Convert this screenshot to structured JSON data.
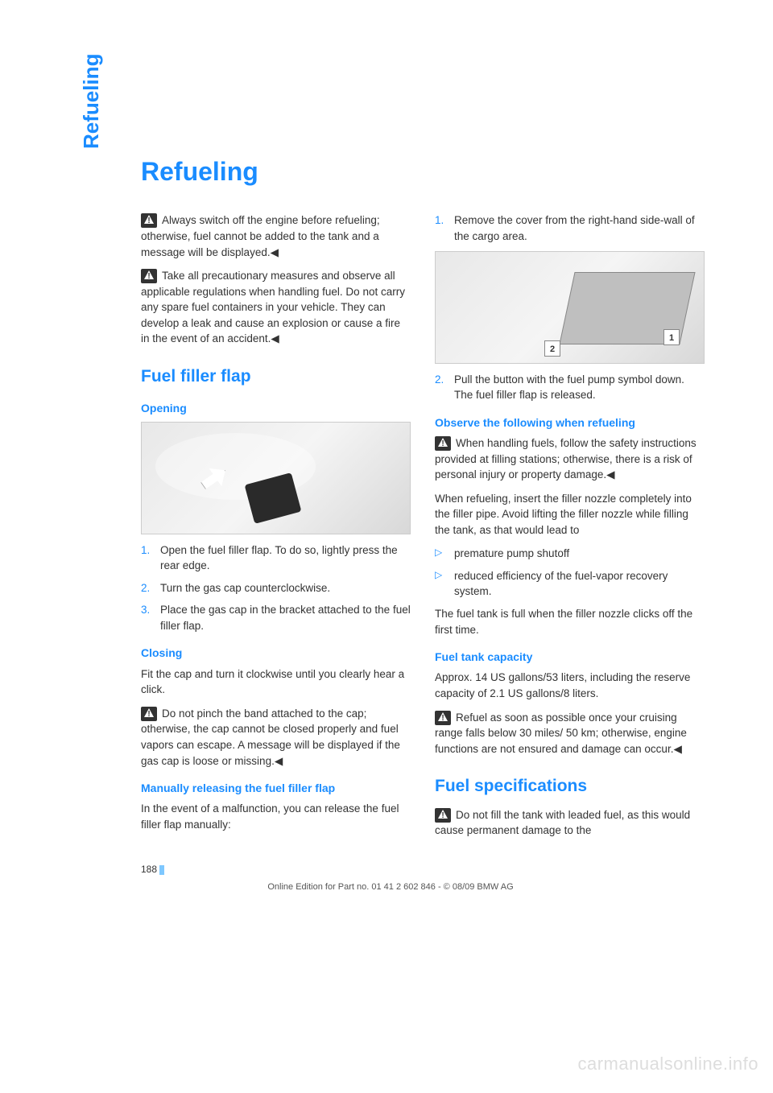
{
  "colors": {
    "accent": "#1a8cff",
    "text": "#333333",
    "watermark": "#dddddd",
    "figure_bg_light": "#f5f5f5",
    "figure_bg_dark": "#d8d8d8"
  },
  "side_label": "Refueling",
  "title": "Refueling",
  "left": {
    "warn1": "Always switch off the engine before refueling; otherwise, fuel cannot be added to the tank and a message will be displayed.◀",
    "warn2": "Take all precautionary measures and observe all applicable regulations when handling fuel. Do not carry any spare fuel containers in your vehicle. They can develop a leak and cause an explosion or cause a fire in the event of an accident.◀",
    "h2_fuel_flap": "Fuel filler flap",
    "h3_opening": "Opening",
    "opening_steps": [
      "Open the fuel filler flap. To do so, lightly press the rear edge.",
      "Turn the gas cap counterclockwise.",
      "Place the gas cap in the bracket attached to the fuel filler flap."
    ],
    "h3_closing": "Closing",
    "closing_p1": "Fit the cap and turn it clockwise until you clearly hear a click.",
    "closing_warn": "Do not pinch the band attached to the cap; otherwise, the cap cannot be closed properly and fuel vapors can escape. A message will be displayed if the gas cap is loose or missing.◀",
    "h3_manual": "Manually releasing the fuel filler flap",
    "manual_p1": "In the event of a malfunction, you can release the fuel filler flap manually:"
  },
  "right": {
    "step1": "Remove the cover from the right-hand side-wall of the cargo area.",
    "step2_a": "Pull the button with the fuel pump symbol down.",
    "step2_b": "The fuel filler flap is released.",
    "h3_observe": "Observe the following when refueling",
    "observe_warn": "When handling fuels, follow the safety instructions provided at filling stations; otherwise, there is a risk of personal injury or property damage.◀",
    "observe_p1": "When refueling, insert the filler nozzle completely into the filler pipe. Avoid lifting the filler nozzle while filling the tank, as that would lead to",
    "observe_bullets": [
      "premature pump shutoff",
      "reduced efficiency of the fuel-vapor recovery system."
    ],
    "observe_p2": "The fuel tank is full when the filler nozzle clicks off the first time.",
    "h3_capacity": "Fuel tank capacity",
    "capacity_p1": "Approx. 14 US gallons/53 liters, including the reserve capacity of 2.1 US gallons/8 liters.",
    "capacity_warn": "Refuel as soon as possible once your cruising range falls below 30 miles/ 50 km; otherwise, engine functions are not ensured and damage can occur.◀",
    "h2_spec": "Fuel specifications",
    "spec_warn": "Do not fill the tank with leaded fuel, as this would cause permanent damage to the"
  },
  "figure2_labels": {
    "n1": "1",
    "n2": "2"
  },
  "page_number": "188",
  "footer": "Online Edition for Part no. 01 41 2 602 846 - © 08/09 BMW AG",
  "watermark": "carmanualsonline.info"
}
